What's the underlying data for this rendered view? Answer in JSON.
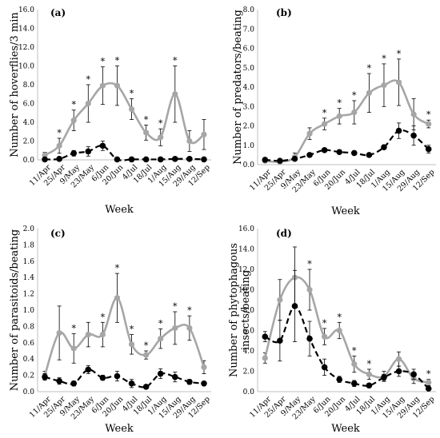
{
  "colors": {
    "grey_series": "#a6a6a6",
    "black_series": "#000000",
    "axis": "#bfbfbf"
  },
  "chart_data": [
    {
      "type": "line",
      "panel": "(a)",
      "xlabel": "Week",
      "ylabel": "Number of hoverflies/3 min",
      "ylim": [
        0,
        16
      ],
      "yticks": [
        "0.0",
        "2.0",
        "4.0",
        "6.0",
        "8.0",
        "10.0",
        "12.0",
        "14.0",
        "16.0"
      ],
      "categories": [
        "11/Apr",
        "25/Apr",
        "9/May",
        "23/May",
        "6/Jun",
        "20/Jun",
        "4/Jul",
        "18/Jul",
        "1/Aug",
        "15/Aug",
        "29/Aug",
        "12/Sep"
      ],
      "series": [
        {
          "style": "grey solid",
          "values": [
            0.5,
            1.5,
            4.2,
            6.0,
            7.9,
            7.9,
            5.4,
            2.9,
            2.4,
            7.0,
            2.0,
            2.7
          ],
          "errors": [
            0.3,
            0.8,
            1.1,
            2.0,
            2.0,
            2.1,
            1.1,
            0.8,
            0.9,
            3.0,
            1.1,
            1.6
          ]
        },
        {
          "style": "black dashed",
          "values": [
            0.05,
            0.1,
            0.7,
            0.9,
            1.5,
            0.05,
            0.05,
            0.05,
            0.05,
            0.1,
            0.1,
            0.05
          ],
          "errors": [
            0,
            0.1,
            0.3,
            0.5,
            0.5,
            0,
            0,
            0,
            0,
            0.1,
            0.1,
            0
          ]
        }
      ],
      "significance": [
        "",
        "*",
        "*",
        "*",
        "*",
        "*",
        "*",
        "*",
        "*",
        "*",
        "",
        ""
      ]
    },
    {
      "type": "line",
      "panel": "(b)",
      "xlabel": "Week",
      "ylabel": "Number of predators/beating",
      "ylim": [
        0,
        8
      ],
      "yticks": [
        "0.0",
        "1.0",
        "2.0",
        "3.0",
        "4.0",
        "5.0",
        "6.0",
        "7.0",
        "8.0"
      ],
      "categories": [
        "11/Apr",
        "25/Apr",
        "9/May",
        "23/May",
        "6/Jun",
        "20/Jun",
        "4/Jul",
        "18/Jul",
        "1/Aug",
        "15/Aug",
        "29/Aug",
        "12/Sep"
      ],
      "series": [
        {
          "style": "grey solid",
          "values": [
            0.2,
            0.15,
            0.4,
            1.6,
            2.1,
            2.5,
            2.7,
            3.7,
            4.1,
            4.25,
            2.6,
            2.1
          ],
          "errors": [
            0.1,
            0.1,
            0.2,
            0.3,
            0.3,
            0.4,
            0.6,
            1.0,
            1.1,
            1.2,
            0.8,
            0.2
          ]
        },
        {
          "style": "black dashed",
          "values": [
            0.25,
            0.2,
            0.3,
            0.5,
            0.75,
            0.65,
            0.6,
            0.5,
            0.9,
            1.75,
            1.5,
            0.8
          ],
          "errors": [
            0,
            0,
            0,
            0.1,
            0.1,
            0.1,
            0.1,
            0,
            0.1,
            0.4,
            0.5,
            0.2
          ]
        }
      ],
      "significance": [
        "",
        "",
        "",
        "",
        "*",
        "*",
        "*",
        "*",
        "*",
        "*",
        "",
        "*"
      ]
    },
    {
      "type": "line",
      "panel": "(c)",
      "xlabel": "Week",
      "ylabel": "Number of parasitoids/beating",
      "ylim": [
        0,
        2
      ],
      "yticks": [
        "0.0",
        "0.2",
        "0.4",
        "0.6",
        "0.8",
        "1.0",
        "1.2",
        "1.4",
        "1.6",
        "1.8",
        "2.0"
      ],
      "categories": [
        "11/Apr",
        "25/Apr",
        "9/May",
        "23/May",
        "6/Jun",
        "20/Jun",
        "4/Jul",
        "18/Jul",
        "1/Aug",
        "15/Aug",
        "29/Aug",
        "12/Sep"
      ],
      "series": [
        {
          "style": "grey solid",
          "values": [
            0.2,
            0.72,
            0.53,
            0.7,
            0.7,
            1.15,
            0.58,
            0.45,
            0.65,
            0.78,
            0.78,
            0.3
          ],
          "errors": [
            0.05,
            0.33,
            0.18,
            0.15,
            0.15,
            0.3,
            0.12,
            0.05,
            0.12,
            0.2,
            0.15,
            0.08
          ]
        },
        {
          "style": "black dashed",
          "values": [
            0.18,
            0.13,
            0.1,
            0.27,
            0.17,
            0.19,
            0.1,
            0.06,
            0.22,
            0.18,
            0.12,
            0.1
          ],
          "errors": [
            0.04,
            0.04,
            0.03,
            0.05,
            0.03,
            0.06,
            0.05,
            0.02,
            0.06,
            0.06,
            0.03,
            0.02
          ]
        }
      ],
      "significance": [
        "",
        "",
        "*",
        "",
        "*",
        "*",
        "*",
        "*",
        "*",
        "*",
        "*",
        ""
      ]
    },
    {
      "type": "line",
      "panel": "(d)",
      "xlabel": "Week",
      "ylabel": "Number of phytophagous insects/beating",
      "ylim": [
        0,
        16
      ],
      "yticks": [
        "0.0",
        "2.0",
        "4.0",
        "6.0",
        "8.0",
        "10.0",
        "12.0",
        "14.0",
        "16.0"
      ],
      "categories": [
        "11/Apr",
        "25/Apr",
        "9/May",
        "23/May",
        "6/Jun",
        "20/Jun",
        "4/Jul",
        "18/Jul",
        "1/Aug",
        "15/Aug",
        "29/Aug",
        "12/Sep"
      ],
      "series": [
        {
          "style": "grey solid",
          "values": [
            3.3,
            9.0,
            11.2,
            10.0,
            5.4,
            6.0,
            2.7,
            1.7,
            1.5,
            3.2,
            1.3,
            0.9
          ],
          "errors": [
            0.5,
            2.0,
            3.0,
            2.0,
            0.8,
            0.8,
            0.8,
            0.5,
            0.5,
            0.7,
            0.5,
            0.3
          ]
        },
        {
          "style": "black dashed",
          "values": [
            5.4,
            5.0,
            8.4,
            5.2,
            2.4,
            1.2,
            0.8,
            0.6,
            1.4,
            2.0,
            1.7,
            0.3
          ],
          "errors": [
            0.5,
            2.0,
            3.5,
            1.7,
            0.8,
            0.3,
            0.3,
            0.2,
            0.3,
            0.5,
            0.5,
            0.1
          ]
        }
      ],
      "significance": [
        "",
        "",
        "",
        "*",
        "*",
        "*",
        "*",
        "*",
        "",
        "",
        "",
        "*"
      ]
    }
  ]
}
